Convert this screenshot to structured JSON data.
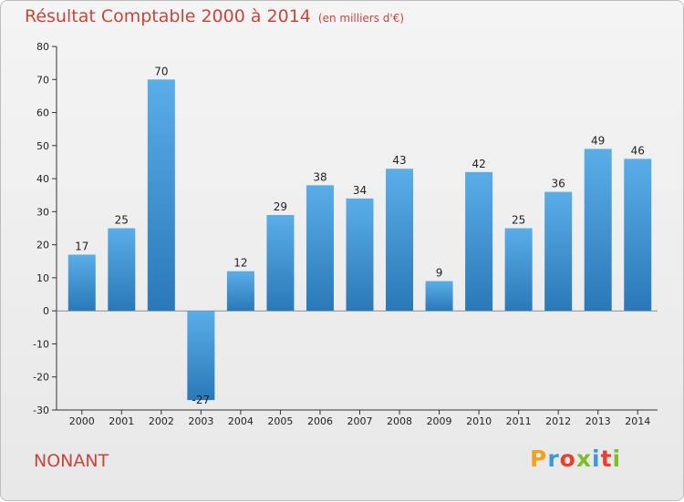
{
  "chart_data": {
    "type": "bar",
    "title": "Résultat Comptable 2000 à 2014",
    "subtitle": "(en milliers d'€)",
    "categories": [
      "2000",
      "2001",
      "2002",
      "2003",
      "2004",
      "2005",
      "2006",
      "2007",
      "2008",
      "2009",
      "2010",
      "2011",
      "2012",
      "2013",
      "2014"
    ],
    "values": [
      17,
      25,
      70,
      -27,
      12,
      29,
      38,
      34,
      43,
      9,
      42,
      25,
      36,
      49,
      46
    ],
    "ylim": [
      -30,
      80
    ],
    "yticks": [
      -30,
      -20,
      -10,
      0,
      10,
      20,
      30,
      40,
      50,
      60,
      70,
      80
    ],
    "xlabel": "",
    "ylabel": "",
    "grid": false
  },
  "commune": "NONANT",
  "logo": {
    "letters": [
      "P",
      "r",
      "o",
      "x",
      "i",
      "t",
      "i"
    ],
    "colors": [
      "#f2a21b",
      "#3a9ad9",
      "#e8402f",
      "#7cbf2a",
      "#3a9ad9",
      "#e8402f",
      "#7cbf2a"
    ]
  },
  "colors": {
    "title": "#c7463b",
    "bar_top": "#5aaee8",
    "bar_bottom": "#2a78b8"
  }
}
